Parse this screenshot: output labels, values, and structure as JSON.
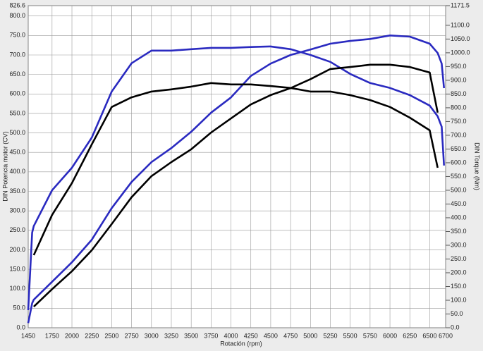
{
  "chart_data": {
    "type": "line",
    "x_label": "Rotación (rpm)",
    "y_label": "DIN Potencia motor (CV)",
    "y2_label": "DIN Torque (Nm)",
    "x": [
      1450,
      1500,
      1520,
      1750,
      2000,
      2250,
      2500,
      2750,
      3000,
      3250,
      3500,
      3750,
      4000,
      4250,
      4500,
      4750,
      5000,
      5250,
      5500,
      5750,
      6000,
      6250,
      6500,
      6600,
      6650,
      6680
    ],
    "xlim": [
      1450,
      6700
    ],
    "xticks": [
      1450,
      1750,
      2000,
      2250,
      2500,
      2750,
      3000,
      3250,
      3500,
      3750,
      4000,
      4250,
      4500,
      4750,
      5000,
      5250,
      5500,
      5750,
      6000,
      6250,
      6500,
      6700
    ],
    "ylim": [
      0,
      826.6
    ],
    "yticks": [
      {
        "value": 0,
        "label": "0.0"
      },
      {
        "value": 50,
        "label": "50.0"
      },
      {
        "value": 100,
        "label": "100.0"
      },
      {
        "value": 150,
        "label": "150.0"
      },
      {
        "value": 200,
        "label": "200.0"
      },
      {
        "value": 250,
        "label": "250.0"
      },
      {
        "value": 300,
        "label": "300.0"
      },
      {
        "value": 350,
        "label": "350.0"
      },
      {
        "value": 400,
        "label": "400.0"
      },
      {
        "value": 450,
        "label": "450.0"
      },
      {
        "value": 500,
        "label": "500.0"
      },
      {
        "value": 550,
        "label": "550.0"
      },
      {
        "value": 600,
        "label": "600.0"
      },
      {
        "value": 650,
        "label": "650.0"
      },
      {
        "value": 700,
        "label": "700.0"
      },
      {
        "value": 750,
        "label": "750.0"
      },
      {
        "value": 800,
        "label": "800.0"
      },
      826.6
    ],
    "y2lim": [
      0,
      1171.5
    ],
    "y2ticks": [
      {
        "value": 0,
        "label": "0.0"
      },
      {
        "value": 50,
        "label": "50.0"
      },
      {
        "value": 100,
        "label": "100.0"
      },
      {
        "value": 150,
        "label": "150.0"
      },
      {
        "value": 200,
        "label": "200.0"
      },
      {
        "value": 250,
        "label": "250.0"
      },
      {
        "value": 300,
        "label": "300.0"
      },
      {
        "value": 350,
        "label": "350.0"
      },
      {
        "value": 400,
        "label": "400.0"
      },
      {
        "value": 450,
        "label": "450.0"
      },
      {
        "value": 500,
        "label": "500.0"
      },
      {
        "value": 550,
        "label": "550.0"
      },
      {
        "value": 600,
        "label": "600.0"
      },
      {
        "value": 650,
        "label": "650.0"
      },
      {
        "value": 700,
        "label": "700.0"
      },
      {
        "value": 750,
        "label": "750.0"
      },
      {
        "value": 800,
        "label": "800.0"
      },
      {
        "value": 850,
        "label": "850.0"
      },
      {
        "value": 900,
        "label": "900.0"
      },
      {
        "value": 950,
        "label": "950.0"
      },
      {
        "value": 1000,
        "label": "1000.0"
      },
      {
        "value": 1050,
        "label": "1050.0"
      },
      {
        "value": 1100,
        "label": "1100.0"
      },
      1171.5
    ],
    "grid": true,
    "series": [
      {
        "color": "#2a2ac0",
        "axis": "y",
        "values": [
          12,
          63,
          72,
          118,
          168,
          226,
          307,
          374,
          425,
          461,
          503,
          552,
          591,
          646,
          678,
          700,
          714,
          729,
          736,
          741,
          750,
          747,
          729,
          705,
          678,
          615
        ]
      },
      {
        "color": "#2a2ac0",
        "axis": "y2",
        "values": [
          64,
          346,
          370,
          500,
          582,
          692,
          859,
          962,
          1008,
          1008,
          1013,
          1018,
          1018,
          1021,
          1023,
          1013,
          992,
          967,
          923,
          890,
          872,
          846,
          808,
          769,
          731,
          590
        ]
      },
      {
        "color": "#000000",
        "axis": "y",
        "values": [
          null,
          null,
          54,
          99,
          145,
          199,
          266,
          335,
          389,
          425,
          458,
          501,
          537,
          573,
          597,
          615,
          638,
          664,
          669,
          675,
          675,
          669,
          655,
          552,
          null,
          null
        ]
      },
      {
        "color": "#000000",
        "axis": "y2",
        "values": [
          null,
          null,
          264,
          410,
          526,
          667,
          803,
          838,
          859,
          867,
          877,
          890,
          885,
          885,
          879,
          872,
          859,
          859,
          846,
          828,
          803,
          764,
          718,
          582,
          null,
          null
        ]
      }
    ]
  }
}
